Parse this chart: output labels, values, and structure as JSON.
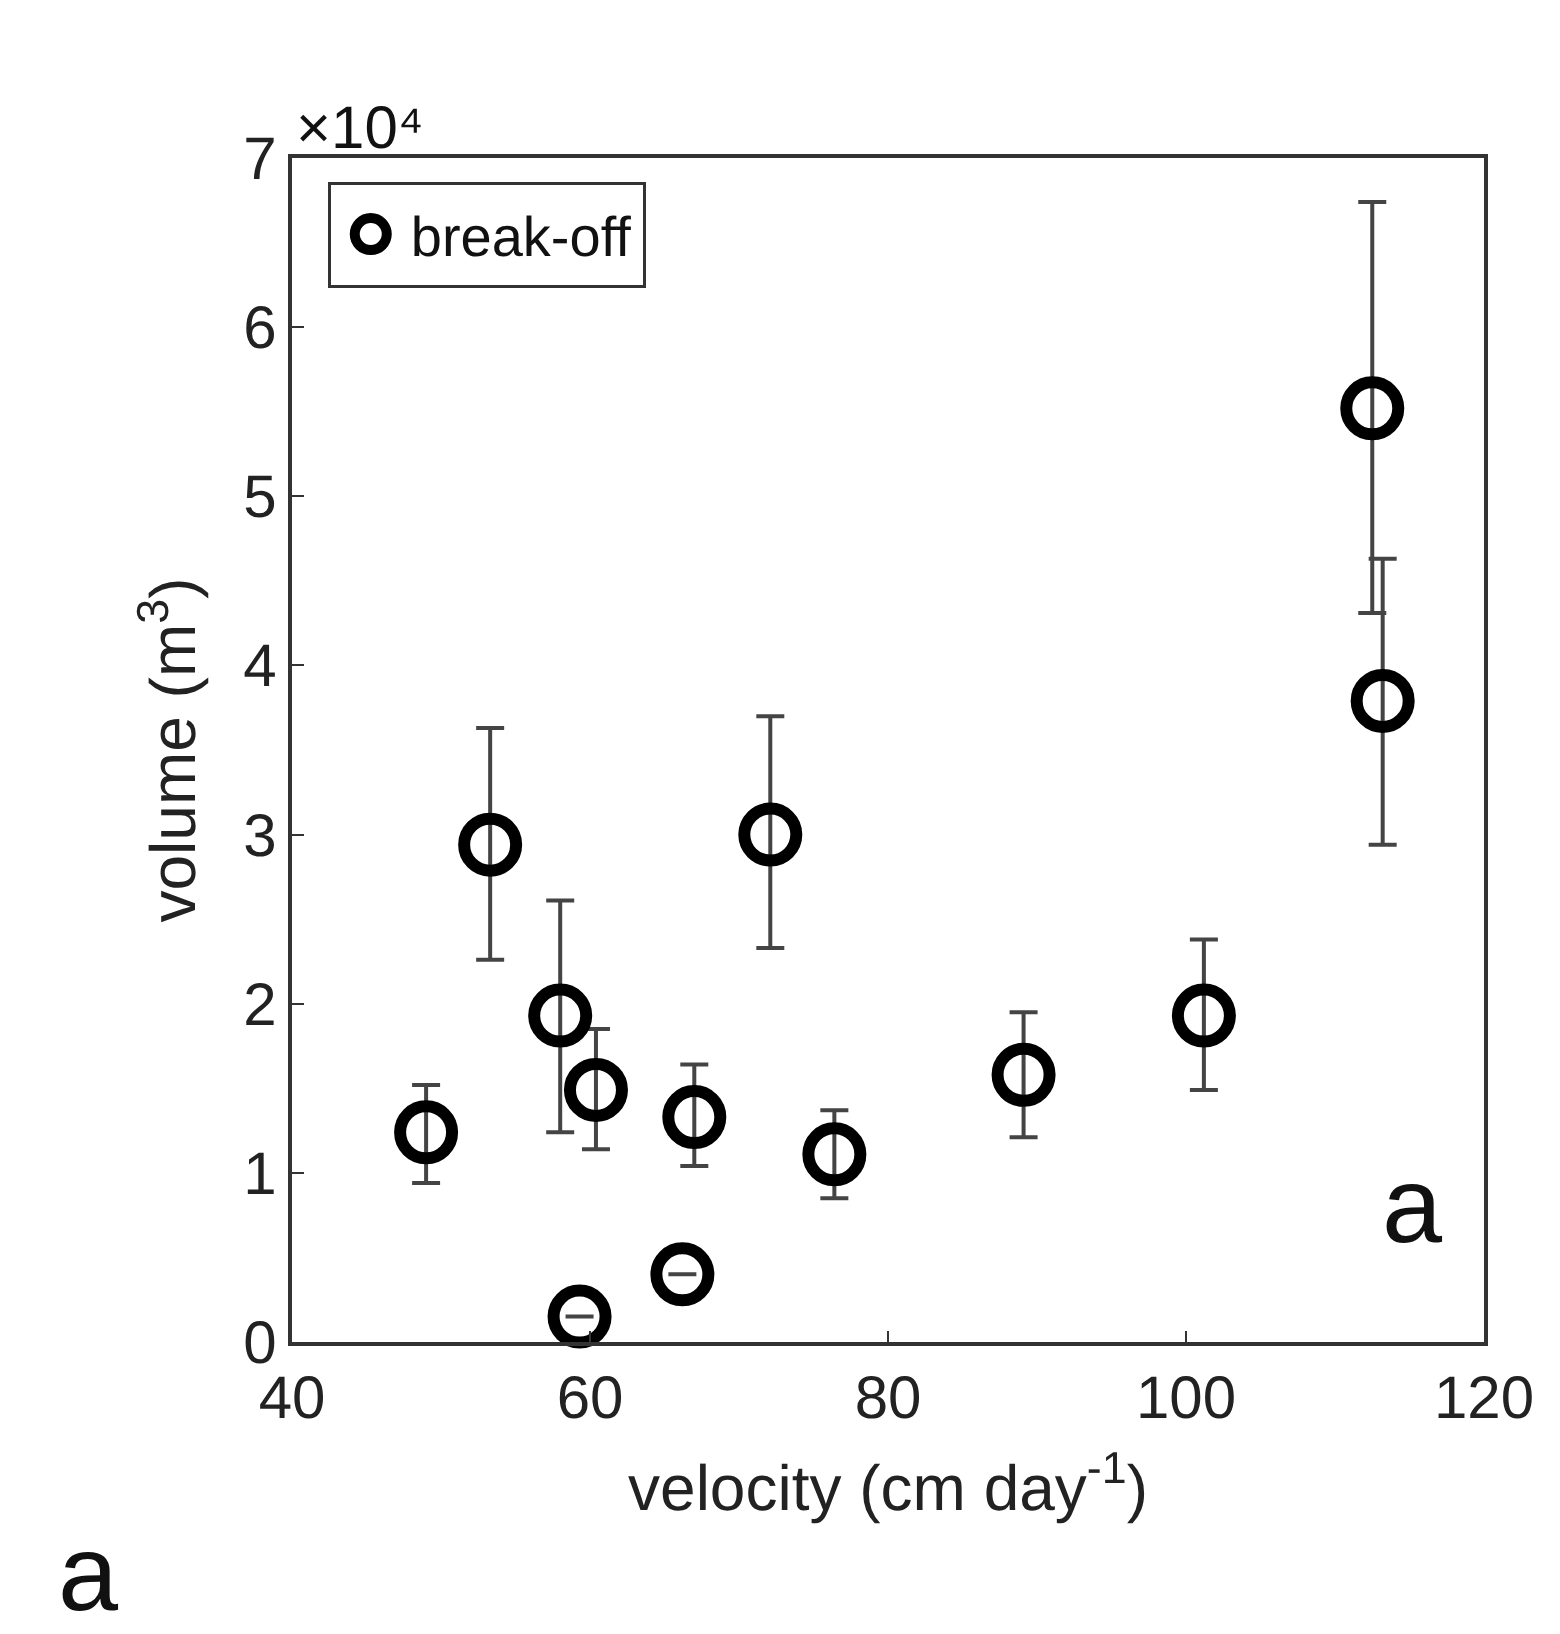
{
  "chart_data": {
    "type": "scatter",
    "xlabel": "velocity (cm day$^{-1}$)",
    "ylabel": "volume (m$^{3}$)",
    "x": [
      49.0,
      53.3,
      58.0,
      60.4,
      59.3,
      66.2,
      67.0,
      72.1,
      76.4,
      89.1,
      101.2,
      112.5,
      113.2
    ],
    "series": [
      {
        "name": "break-off",
        "color": "#000000",
        "values": [
          1.24,
          2.94,
          1.93,
          1.49,
          0.15,
          0.4,
          1.33,
          3.0,
          1.11,
          1.58,
          1.93,
          5.52,
          3.79
        ],
        "errors": [
          [
            0.94,
            1.52
          ],
          [
            2.26,
            3.63
          ],
          [
            1.24,
            2.61
          ],
          [
            1.14,
            1.85
          ],
          null,
          null,
          [
            1.04,
            1.64
          ],
          [
            2.33,
            3.7
          ],
          [
            0.85,
            1.37
          ],
          [
            1.21,
            1.95
          ],
          [
            1.49,
            2.38
          ],
          [
            4.31,
            6.74
          ],
          [
            2.94,
            4.63
          ]
        ]
      }
    ],
    "xlim": [
      40,
      120
    ],
    "xticks": [
      40,
      60,
      80,
      100,
      120
    ],
    "ylim": [
      0,
      7
    ],
    "yticks": [
      0,
      1,
      2,
      3,
      4,
      5,
      6,
      7
    ],
    "marker": "circle",
    "legend": "top left",
    "grid": false,
    "annotations": [
      "×10⁴",
      "a",
      "a"
    ]
  }
}
